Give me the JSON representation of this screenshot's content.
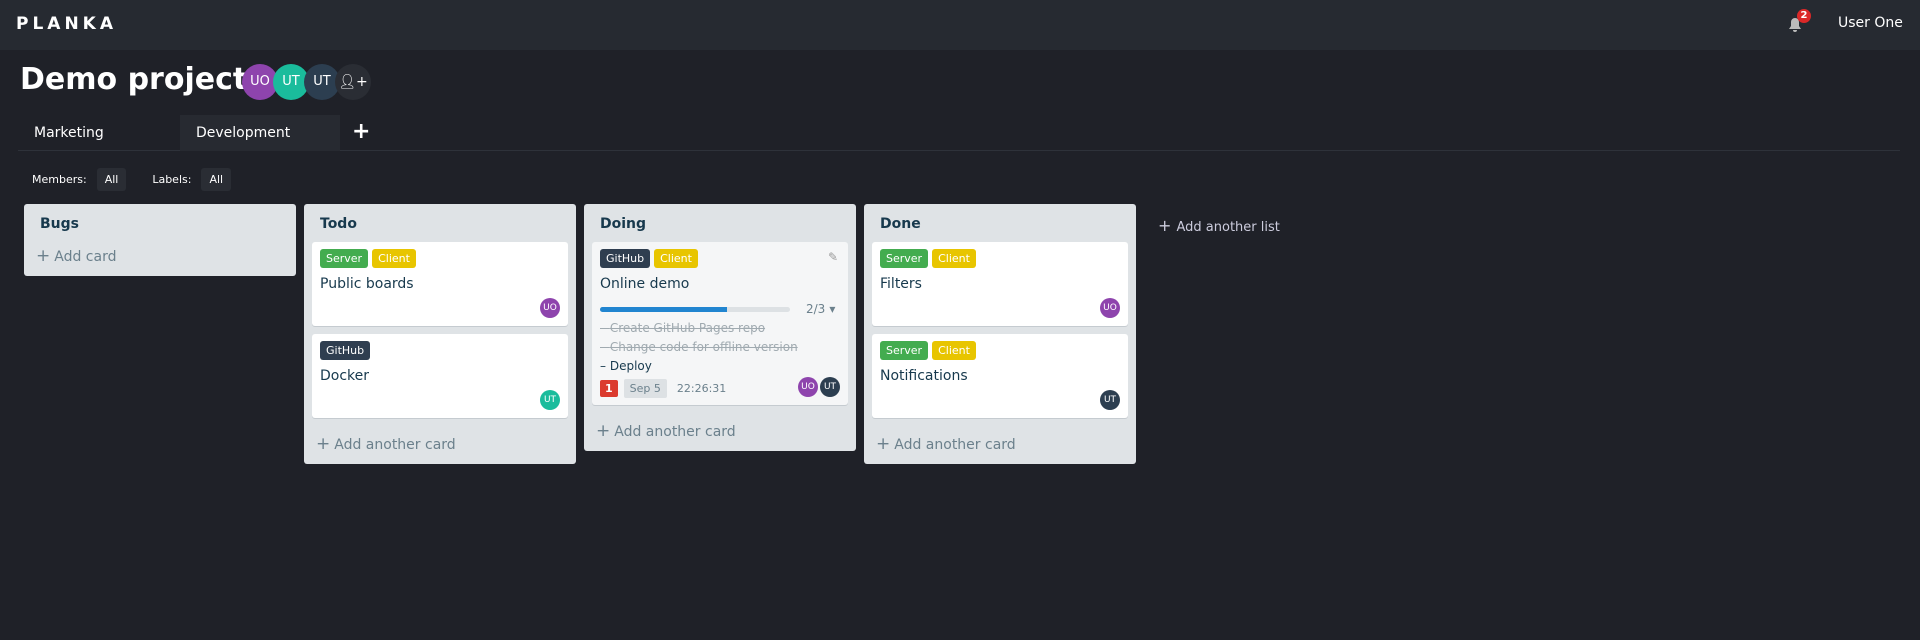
{
  "app": {
    "logo": "PLANKA",
    "notifications": "2",
    "user": "User One"
  },
  "project": {
    "title": "Demo project",
    "members": [
      {
        "initials": "UO",
        "color": "#8e44ad"
      },
      {
        "initials": "UT",
        "color": "#1abc9c"
      },
      {
        "initials": "UT",
        "color": "#2c3e50"
      }
    ]
  },
  "tabs": [
    {
      "label": "Marketing"
    },
    {
      "label": "Development"
    }
  ],
  "filters": {
    "members_label": "Members:",
    "members_value": "All",
    "labels_label": "Labels:",
    "labels_value": "All"
  },
  "colors": {
    "Server": "#43ac4f",
    "Client": "#e8c500",
    "GitHub": "#2f3e50",
    "UO": "#8e44ad",
    "UT1": "#1abc9c",
    "UT2": "#2c3e50"
  },
  "lists": [
    {
      "title": "Bugs",
      "add": "Add card"
    },
    {
      "title": "Todo",
      "add": "Add another card",
      "cards": [
        {
          "labels": [
            "Server",
            "Client"
          ],
          "title": "Public boards",
          "members": [
            "UO"
          ]
        },
        {
          "labels": [
            "GitHub"
          ],
          "title": "Docker",
          "members": [
            "UT"
          ]
        }
      ]
    },
    {
      "title": "Doing",
      "add": "Add another card",
      "cards": [
        {
          "labels": [
            "GitHub",
            "Client"
          ],
          "title": "Online demo",
          "progress": "2/3",
          "progress_fraction": 0.667,
          "tasks": [
            {
              "text": "Create GitHub Pages repo",
              "done": true
            },
            {
              "text": "Change code for offline version",
              "done": true
            },
            {
              "text": "Deploy",
              "done": false
            }
          ],
          "comments": "1",
          "due": "Sep 5",
          "timer": "22:26:31",
          "members": [
            "UO",
            "UT"
          ]
        }
      ]
    },
    {
      "title": "Done",
      "add": "Add another card",
      "cards": [
        {
          "labels": [
            "Server",
            "Client"
          ],
          "title": "Filters",
          "members": [
            "UO"
          ]
        },
        {
          "labels": [
            "Server",
            "Client"
          ],
          "title": "Notifications",
          "members": [
            "UT"
          ]
        }
      ]
    }
  ],
  "add_list": "Add another list"
}
